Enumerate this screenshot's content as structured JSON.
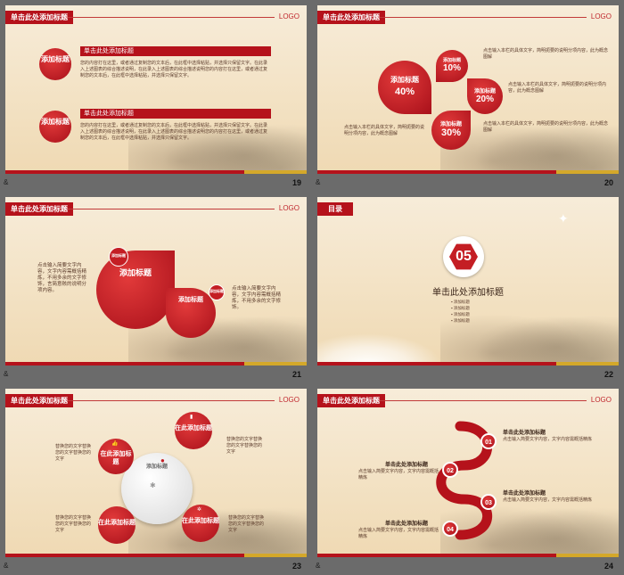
{
  "slides": [
    {
      "num": "19",
      "caption": "&",
      "title": "单击此处添加标题",
      "logo": "LOGO",
      "badge1": "添加标题",
      "badge2": "添加标题",
      "bar1": "单击此处添加标题",
      "bar2": "单击此处添加标题",
      "para": "您的内容打在这里，或者通过复制您的文本后，在此框中选择粘贴，并选择只保留文字。在此录入上述图表的综合描述说明，在此录入上述图表的综合描述说明您的内容打在这里，或者通过复制您的文本后，在此框中选择粘贴，并选择只保留文字。"
    },
    {
      "num": "20",
      "caption": "&",
      "title": "单击此处添加标题",
      "logo": "LOGO",
      "big_label": "添加标题",
      "big_pct": "40%",
      "p1_label": "添加标题",
      "p1_pct": "10%",
      "p2_label": "添加标题",
      "p2_pct": "20%",
      "p3_label": "添加标题",
      "p3_pct": "30%",
      "note": "点击输入本栏的具体文字，简明扼要的说明分项内容，此为概念图解"
    },
    {
      "num": "21",
      "caption": "&",
      "title": "单击此处添加标题",
      "logo": "LOGO",
      "left_text": "点击输入简要文字内容，文字内容需概括精炼，不用多余的文字修饰，言简意赅的说明分项内容。",
      "big_bubble": "添加标题",
      "small_tag1": "添加标题",
      "small_bubble": "添加标题",
      "small_tag2": "添加标题",
      "right_text": "点击输入简要文字内容，文字内容需概括精炼，不用多余的文字修饰。"
    },
    {
      "num": "22",
      "caption": "",
      "tag": "目录",
      "number": "05",
      "heading": "单击此处添加标题",
      "items": [
        "添加标题",
        "添加标题",
        "添加标题",
        "添加标题"
      ]
    },
    {
      "num": "23",
      "caption": "&",
      "title": "单击此处添加标题",
      "logo": "LOGO",
      "center": "添加标题",
      "b1": "在此添加标题",
      "b2": "在此添加标题",
      "b3": "在此添加标题",
      "b4": "在此添加标题",
      "text": "替换您的文字替换您的文字替换您的文字"
    },
    {
      "num": "24",
      "caption": "&",
      "title": "单击此处添加标题",
      "logo": "LOGO",
      "steps": [
        "01",
        "02",
        "03",
        "04"
      ],
      "step_title": "单击此处添加标题",
      "step_text": "点击输入简要文字内容，文字内容需概括精炼"
    }
  ],
  "colors": {
    "accent": "#b5121b",
    "gold": "#d4a82a",
    "bg": "#6b6b6b"
  }
}
